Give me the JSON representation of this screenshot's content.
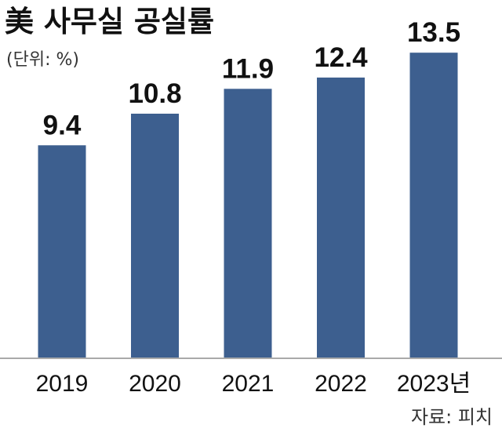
{
  "chart_data": {
    "type": "bar",
    "title": "美 사무실 공실률",
    "unit_label": "(단위: %)",
    "source": "자료: 피치",
    "categories": [
      "2019",
      "2020",
      "2021",
      "2022",
      "2023년"
    ],
    "values": [
      9.4,
      10.8,
      11.9,
      12.4,
      13.5
    ],
    "value_labels": [
      "9.4",
      "10.8",
      "11.9",
      "12.4",
      "13.5"
    ],
    "xlabel": "",
    "ylabel": "",
    "grid": false,
    "bar_color": "#3d5f8f",
    "axis_color": "#aaaaaa"
  }
}
